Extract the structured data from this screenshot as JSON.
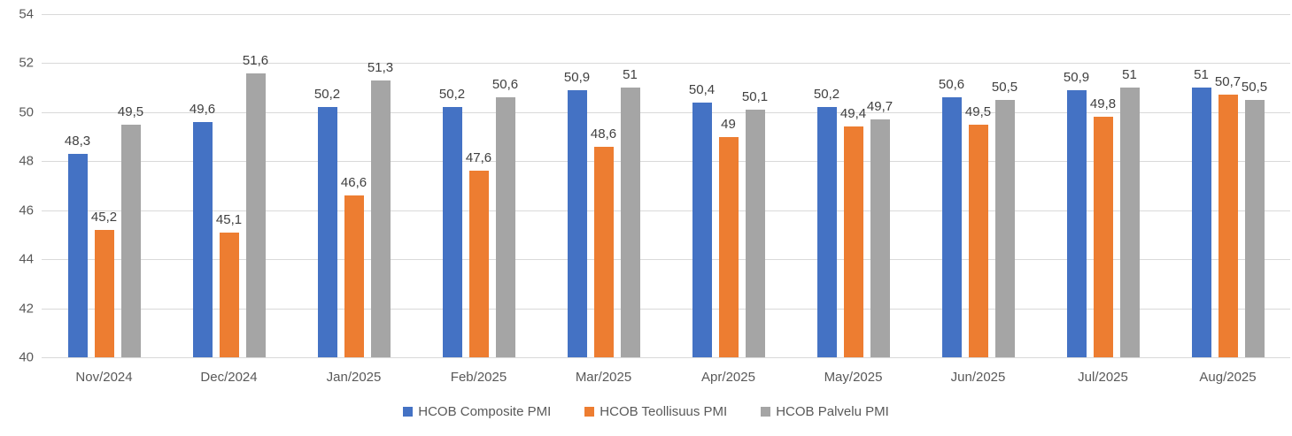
{
  "chart_data": {
    "type": "bar",
    "title": "",
    "xlabel": "",
    "ylabel": "",
    "ylim": [
      40,
      54
    ],
    "yticks": [
      40,
      42,
      44,
      46,
      48,
      50,
      52,
      54
    ],
    "grid": true,
    "legend_position": "bottom-center",
    "decimal_separator": ",",
    "categories": [
      "Nov/2024",
      "Dec/2024",
      "Jan/2025",
      "Feb/2025",
      "Mar/2025",
      "Apr/2025",
      "May/2025",
      "Jun/2025",
      "Jul/2025",
      "Aug/2025"
    ],
    "series": [
      {
        "name": "HCOB Composite PMI",
        "color": "#4472c4",
        "values": [
          48.3,
          49.6,
          50.2,
          50.2,
          50.9,
          50.4,
          50.2,
          50.6,
          50.9,
          51
        ],
        "labels": [
          "48,3",
          "49,6",
          "50,2",
          "50,2",
          "50,9",
          "50,4",
          "50,2",
          "50,6",
          "50,9",
          "51"
        ]
      },
      {
        "name": "HCOB Teollisuus PMI",
        "color": "#ed7d31",
        "values": [
          45.2,
          45.1,
          46.6,
          47.6,
          48.6,
          49,
          49.4,
          49.5,
          49.8,
          50.7
        ],
        "labels": [
          "45,2",
          "45,1",
          "46,6",
          "47,6",
          "48,6",
          "49",
          "49,4",
          "49,5",
          "49,8",
          "50,7"
        ]
      },
      {
        "name": "HCOB Palvelu PMI",
        "color": "#a5a5a5",
        "values": [
          49.5,
          51.6,
          51.3,
          50.6,
          51,
          50.1,
          49.7,
          50.5,
          51,
          50.5
        ],
        "labels": [
          "49,5",
          "51,6",
          "51,3",
          "50,6",
          "51",
          "50,1",
          "49,7",
          "50,5",
          "51",
          "50,5"
        ]
      }
    ],
    "colors": {
      "gridline": "#d9d9d9",
      "axis_tick_text": "#595959",
      "data_label_text": "#404040"
    }
  }
}
